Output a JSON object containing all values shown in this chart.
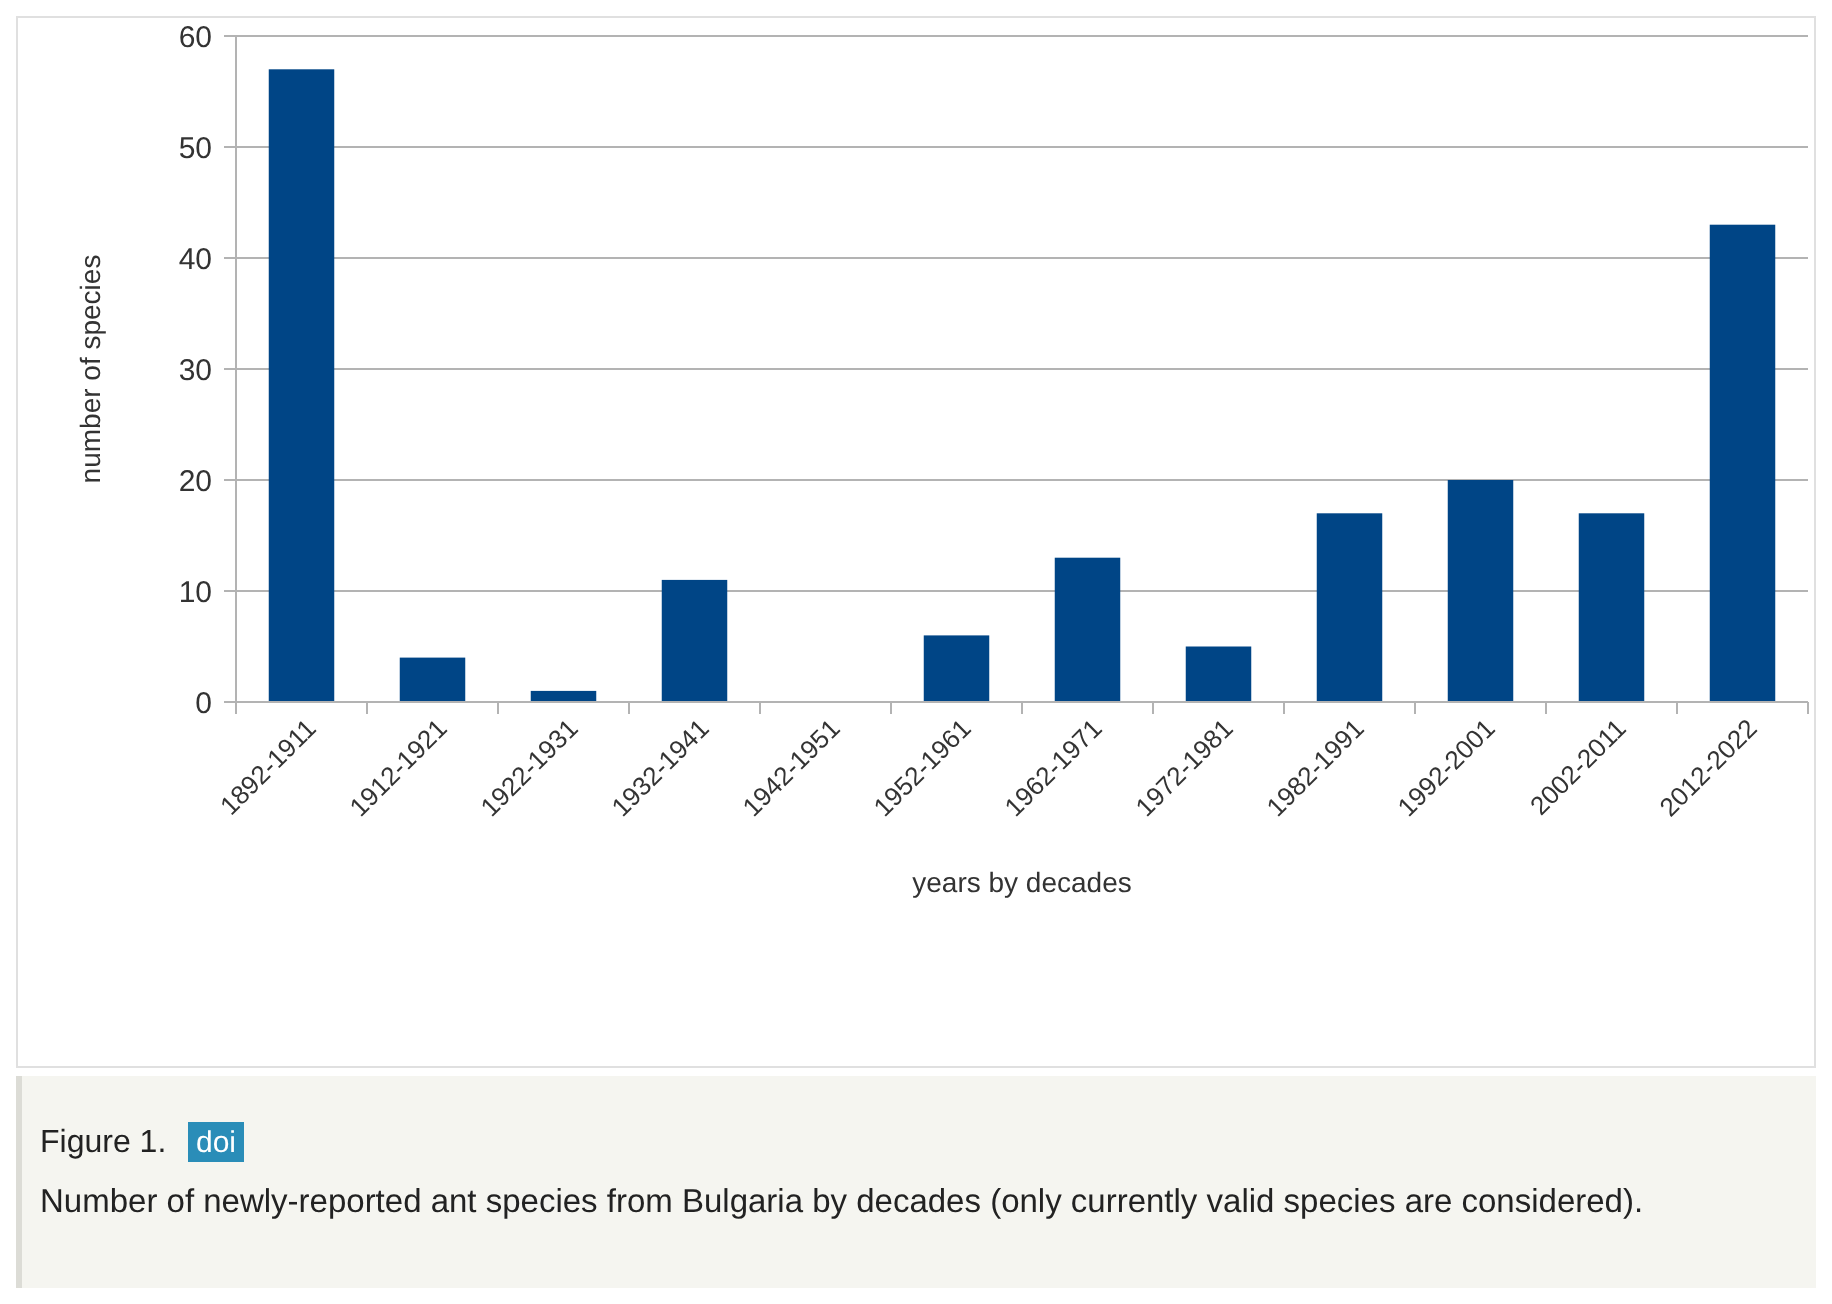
{
  "chart_data": {
    "type": "bar",
    "xlabel": "years by decades",
    "ylabel": "number of species",
    "categories": [
      "1892-1911",
      "1912-1921",
      "1922-1931",
      "1932-1941",
      "1942-1951",
      "1952-1961",
      "1962-1971",
      "1972-1981",
      "1982-1991",
      "1992-2001",
      "2002-2011",
      "2012-2022"
    ],
    "values": [
      57,
      4,
      1,
      11,
      0,
      6,
      13,
      5,
      17,
      20,
      17,
      43
    ],
    "color": "#004586",
    "ylim": [
      0,
      60
    ],
    "yticks": [
      0,
      10,
      20,
      30,
      40,
      50,
      60
    ],
    "grid": "y",
    "annotations": [
      "Figure 1.",
      "doi",
      "Number of newly-reported ant species from Bulgaria by decades (only currently valid species are considered)."
    ]
  }
}
